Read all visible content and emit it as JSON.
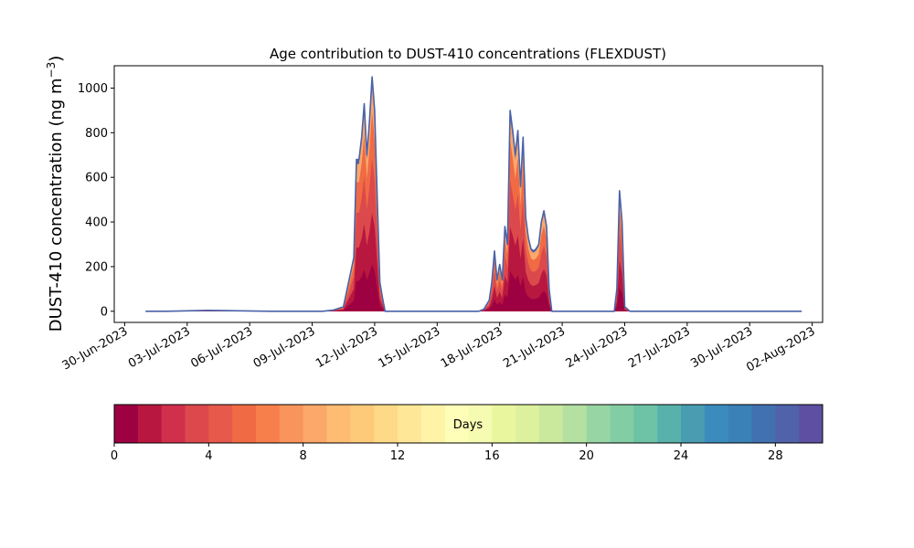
{
  "chart_data": {
    "type": "area",
    "title": "Age contribution to DUST-410 concentrations (FLEXDUST)",
    "ylabel_main": "DUST-410 concentration (ng m",
    "ylabel_sup": "−3",
    "ylabel_close": ")",
    "xlabel": "",
    "ylim": [
      -50,
      1100
    ],
    "yticks": [
      0,
      200,
      400,
      600,
      800,
      1000
    ],
    "xlim_days": [
      "2023-06-29T12:00",
      "2023-08-02T12:00"
    ],
    "date_ticks": [
      {
        "date": "2023-06-30",
        "label": "30-Jun-2023"
      },
      {
        "date": "2023-07-03",
        "label": "03-Jul-2023"
      },
      {
        "date": "2023-07-06",
        "label": "06-Jul-2023"
      },
      {
        "date": "2023-07-09",
        "label": "09-Jul-2023"
      },
      {
        "date": "2023-07-12",
        "label": "12-Jul-2023"
      },
      {
        "date": "2023-07-15",
        "label": "15-Jul-2023"
      },
      {
        "date": "2023-07-18",
        "label": "18-Jul-2023"
      },
      {
        "date": "2023-07-21",
        "label": "21-Jul-2023"
      },
      {
        "date": "2023-07-24",
        "label": "24-Jul-2023"
      },
      {
        "date": "2023-07-27",
        "label": "27-Jul-2023"
      },
      {
        "date": "2023-07-30",
        "label": "30-Jul-2023"
      },
      {
        "date": "2023-08-02",
        "label": "02-Aug-2023"
      }
    ],
    "grid": false,
    "total_series": {
      "x": [
        "2023-07-01T00:00",
        "2023-07-02T00:00",
        "2023-07-04T00:00",
        "2023-07-07T00:00",
        "2023-07-09T12:00",
        "2023-07-10T00:00",
        "2023-07-10T12:00",
        "2023-07-11T00:00",
        "2023-07-11T03:00",
        "2023-07-11T06:00",
        "2023-07-11T09:00",
        "2023-07-11T12:00",
        "2023-07-11T15:00",
        "2023-07-11T18:00",
        "2023-07-11T21:00",
        "2023-07-12T00:00",
        "2023-07-12T03:00",
        "2023-07-12T06:00",
        "2023-07-12T09:00",
        "2023-07-12T12:00",
        "2023-07-12T18:00",
        "2023-07-13T00:00",
        "2023-07-16T00:00",
        "2023-07-17T00:00",
        "2023-07-17T06:00",
        "2023-07-17T12:00",
        "2023-07-17T15:00",
        "2023-07-17T18:00",
        "2023-07-17T21:00",
        "2023-07-18T00:00",
        "2023-07-18T03:00",
        "2023-07-18T06:00",
        "2023-07-18T09:00",
        "2023-07-18T12:00",
        "2023-07-18T15:00",
        "2023-07-18T18:00",
        "2023-07-18T21:00",
        "2023-07-19T00:00",
        "2023-07-19T03:00",
        "2023-07-19T06:00",
        "2023-07-19T09:00",
        "2023-07-19T12:00",
        "2023-07-19T15:00",
        "2023-07-19T18:00",
        "2023-07-19T21:00",
        "2023-07-20T00:00",
        "2023-07-20T03:00",
        "2023-07-20T06:00",
        "2023-07-20T09:00",
        "2023-07-20T12:00",
        "2023-07-20T15:00",
        "2023-07-20T18:00",
        "2023-07-20T21:00",
        "2023-07-21T00:00",
        "2023-07-21T06:00",
        "2023-07-21T12:00",
        "2023-07-23T00:00",
        "2023-07-23T06:00",
        "2023-07-23T12:00",
        "2023-07-23T15:00",
        "2023-07-23T18:00",
        "2023-07-23T21:00",
        "2023-07-24T00:00",
        "2023-07-24T06:00",
        "2023-07-24T12:00",
        "2023-07-27T00:00",
        "2023-07-30T00:00",
        "2023-08-01T00:00",
        "2023-08-01T12:00"
      ],
      "y": [
        0,
        0,
        4,
        0,
        0,
        5,
        20,
        240,
        680,
        680,
        780,
        930,
        700,
        850,
        1050,
        900,
        500,
        130,
        60,
        0,
        0,
        0,
        0,
        0,
        10,
        50,
        130,
        270,
        140,
        210,
        140,
        380,
        300,
        900,
        810,
        700,
        810,
        560,
        780,
        420,
        330,
        280,
        270,
        280,
        300,
        400,
        450,
        380,
        100,
        0,
        0,
        0,
        0,
        0,
        0,
        0,
        0,
        0,
        0,
        100,
        540,
        400,
        20,
        0,
        0,
        0,
        0,
        0,
        0
      ]
    },
    "colorbar": {
      "label": "Days",
      "min": 0,
      "max": 30,
      "ticks": [
        0,
        4,
        8,
        12,
        16,
        20,
        24,
        28
      ],
      "colors": [
        "#9e0142",
        "#b8173f",
        "#d0304b",
        "#dc494c",
        "#e6594b",
        "#f06b44",
        "#f67f4b",
        "#f9955c",
        "#fca86a",
        "#fdbc72",
        "#fdca7a",
        "#fed987",
        "#fee797",
        "#fff3a8",
        "#fefeb8",
        "#f6fbb2",
        "#eaf69e",
        "#dcf09e",
        "#cae99d",
        "#b4e0a1",
        "#98d5a4",
        "#83cda4",
        "#6ec3a7",
        "#58b1aa",
        "#4a9db0",
        "#3b8cbd",
        "#3981b6",
        "#4171b1",
        "#4f62aa",
        "#5e4fa2"
      ]
    }
  }
}
